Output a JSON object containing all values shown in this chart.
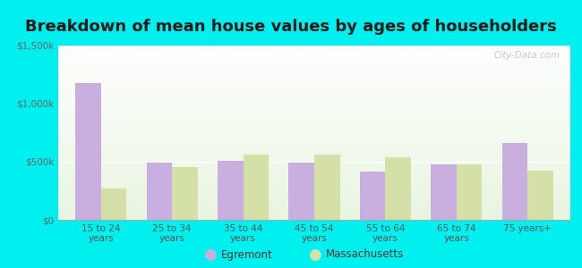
{
  "title": "Breakdown of mean house values by ages of householders",
  "categories": [
    "15 to 24\nyears",
    "25 to 34\nyears",
    "35 to 44\nyears",
    "45 to 54\nyears",
    "55 to 64\nyears",
    "65 to 74\nyears",
    "75 years+"
  ],
  "egremont": [
    1175000,
    490000,
    510000,
    495000,
    415000,
    475000,
    660000
  ],
  "massachusetts": [
    270000,
    455000,
    565000,
    560000,
    535000,
    480000,
    420000
  ],
  "egremont_color": "#c9aee0",
  "massachusetts_color": "#d4e0a8",
  "ylim": [
    0,
    1500000
  ],
  "yticks": [
    0,
    500000,
    1000000,
    1500000
  ],
  "ytick_labels": [
    "$0",
    "$500k",
    "$1,000k",
    "$1,500k"
  ],
  "legend_labels": [
    "Egremont",
    "Massachusetts"
  ],
  "background_outer": "#00efef",
  "background_inner_top": "#f0faf8",
  "background_inner_bottom": "#e8f5e0",
  "title_fontsize": 13,
  "bar_width": 0.36,
  "watermark": "City-Data.com"
}
